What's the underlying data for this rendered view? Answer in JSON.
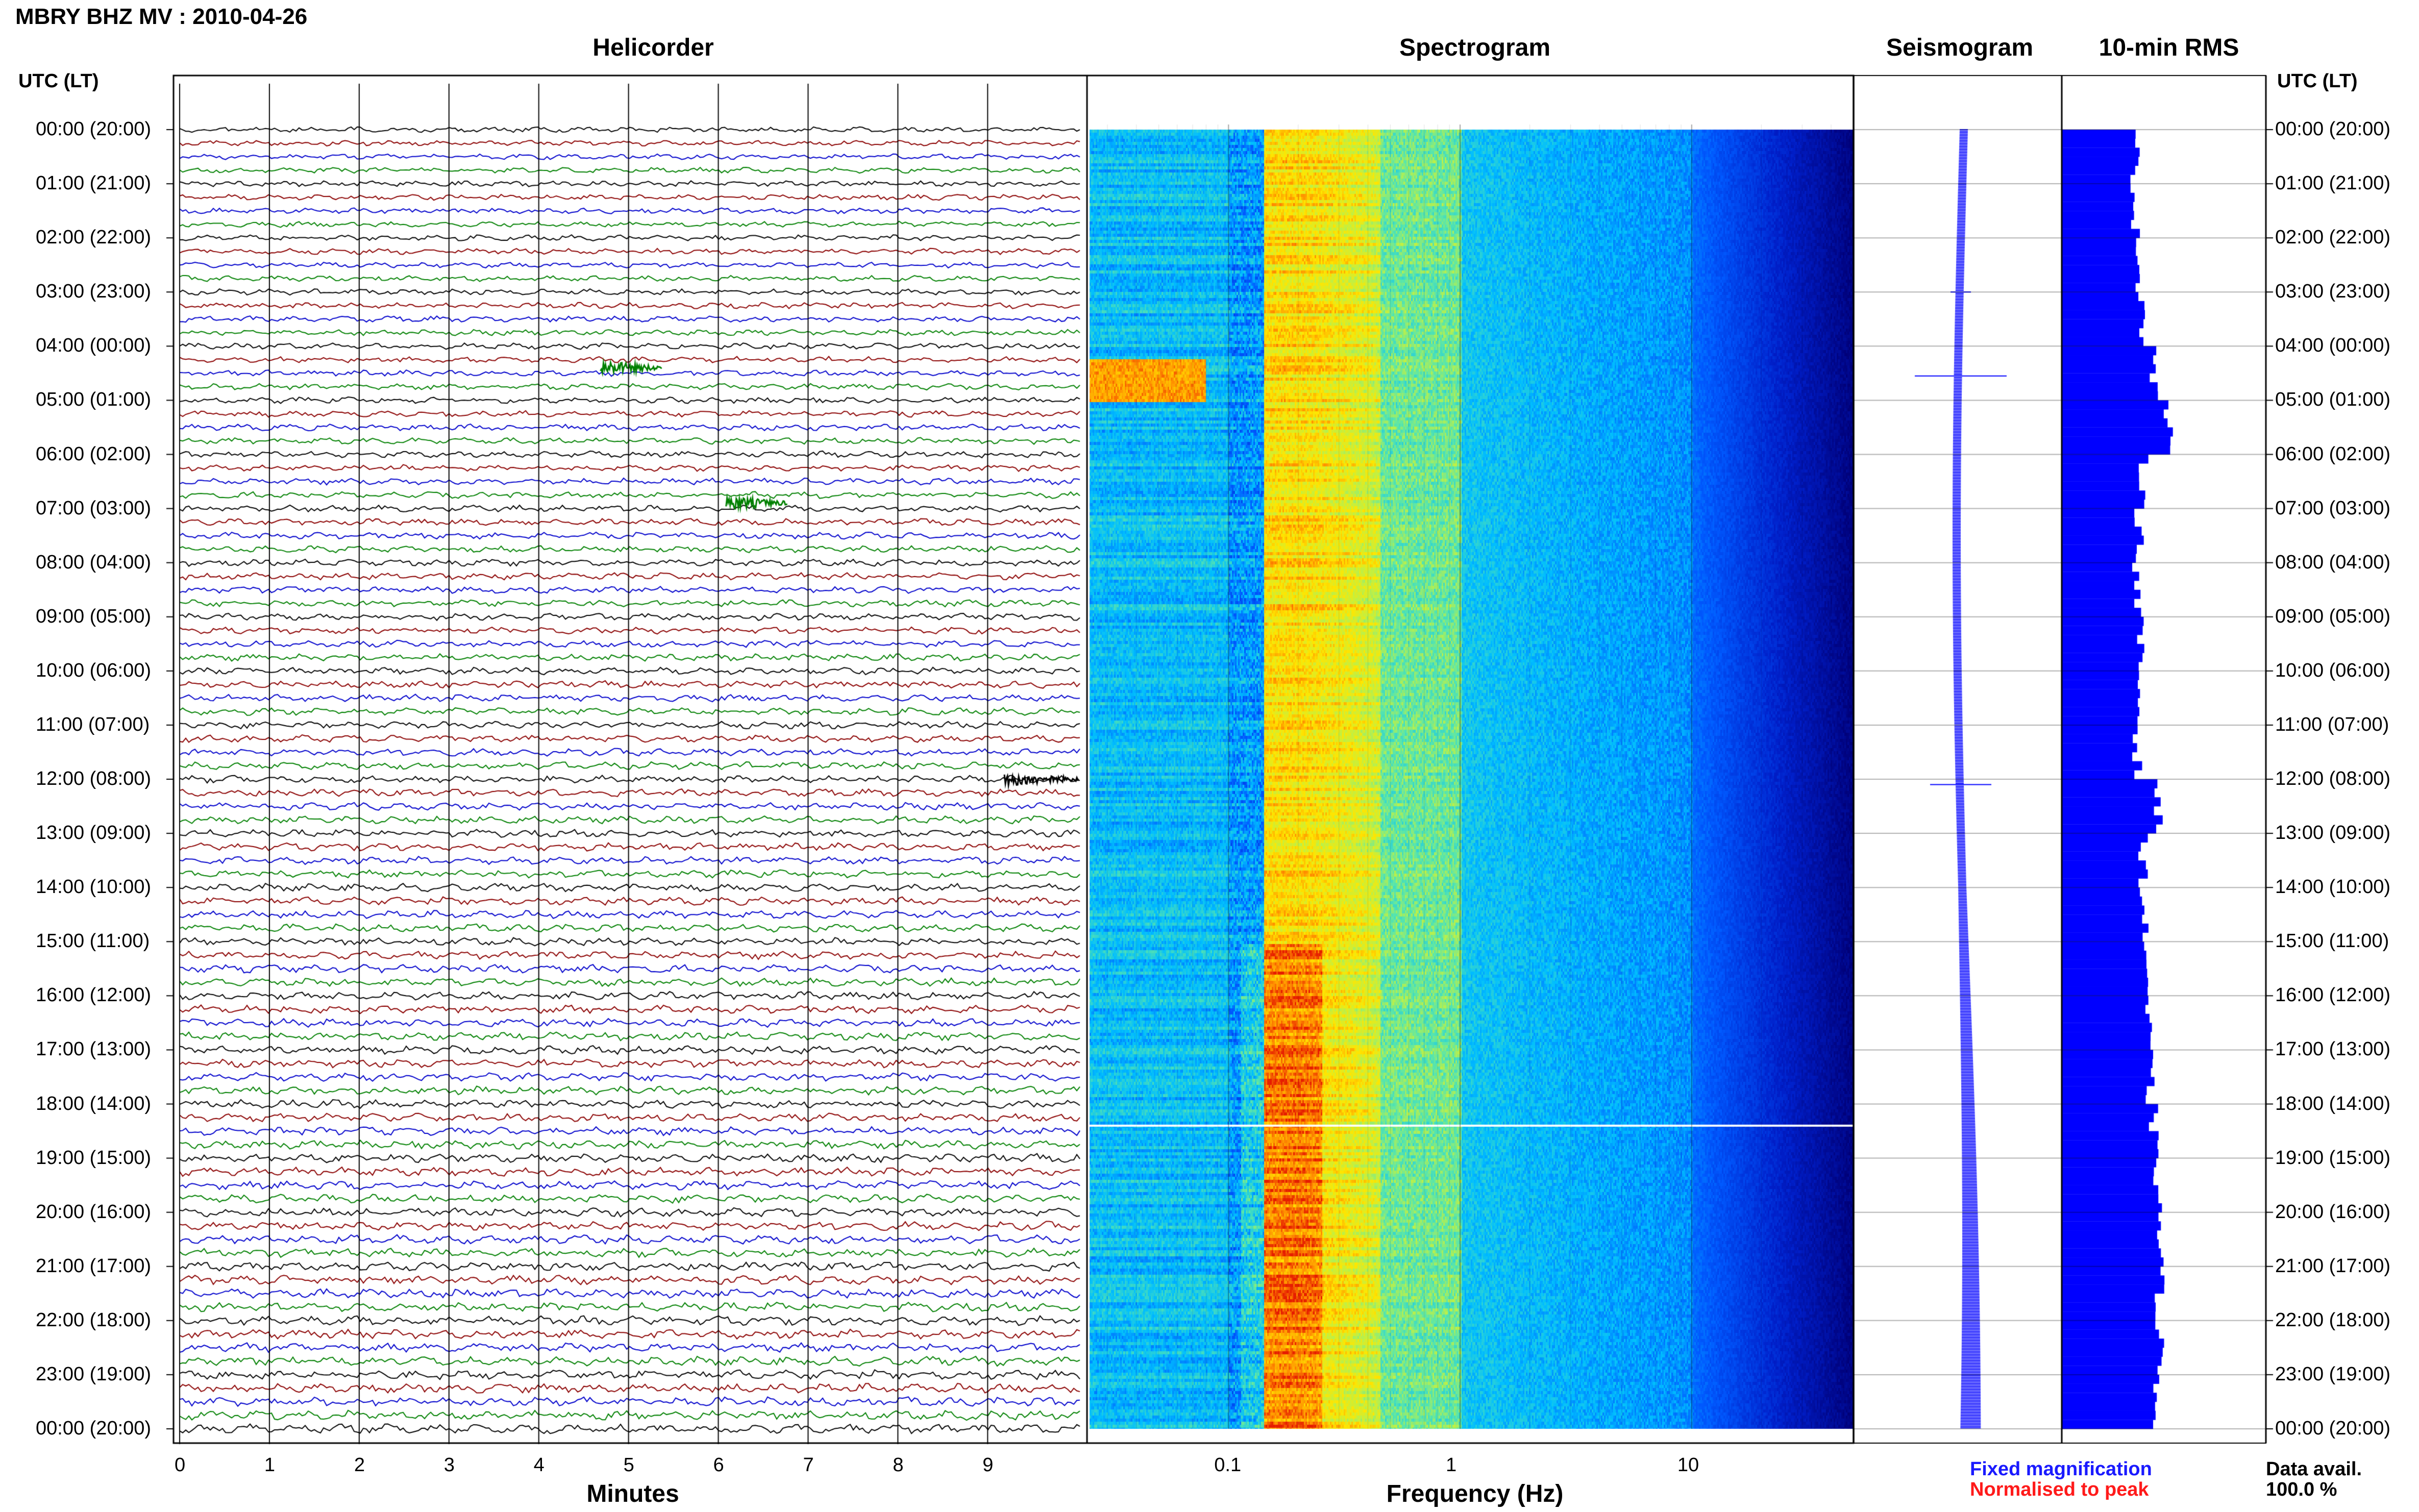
{
  "header": {
    "title": "MBRY BHZ MV : 2010-04-26"
  },
  "panels": {
    "helicorder": "Helicorder",
    "spectrogram": "Spectrogram",
    "seismogram": "Seismogram",
    "rms": "10-min RMS"
  },
  "time_axis": {
    "head_label": "UTC (LT)",
    "labels": [
      "00:00 (20:00)",
      "01:00 (21:00)",
      "02:00 (22:00)",
      "03:00 (23:00)",
      "04:00 (00:00)",
      "05:00 (01:00)",
      "06:00 (02:00)",
      "07:00 (03:00)",
      "08:00 (04:00)",
      "09:00 (05:00)",
      "10:00 (06:00)",
      "11:00 (07:00)",
      "12:00 (08:00)",
      "13:00 (09:00)",
      "14:00 (10:00)",
      "15:00 (11:00)",
      "16:00 (12:00)",
      "17:00 (13:00)",
      "18:00 (14:00)",
      "19:00 (15:00)",
      "20:00 (16:00)",
      "21:00 (17:00)",
      "22:00 (18:00)",
      "23:00 (19:00)",
      "00:00 (20:00)"
    ]
  },
  "x_axes": {
    "minutes_label": "Minutes",
    "minutes_ticks": [
      "0",
      "1",
      "2",
      "3",
      "4",
      "5",
      "6",
      "7",
      "8",
      "9"
    ],
    "frequency_label": "Frequency (Hz)",
    "frequency_ticks": [
      "0.1",
      "1",
      "10"
    ]
  },
  "legend": {
    "fixed": "Fixed magnification",
    "normalised": "Normalised to peak",
    "fixed_color": "#1a1aff",
    "normalised_color": "#ff1a1a"
  },
  "availability": {
    "label": "Data avail.",
    "value": "100.0 %"
  },
  "chart_data": {
    "type": "heatmap",
    "colors": {
      "trace_cycle": [
        "#000000",
        "#8b0000",
        "#0000cc",
        "#008000"
      ],
      "seismogram": "#0000ff",
      "rms": "#0000ff"
    },
    "rms_scale_note": "",
    "rms_hourly_relative": [
      0.36,
      0.36,
      0.38,
      0.4,
      0.45,
      0.52,
      0.4,
      0.38,
      0.37,
      0.38,
      0.38,
      0.37,
      0.47,
      0.4,
      0.4,
      0.42,
      0.42,
      0.43,
      0.45,
      0.47,
      0.48,
      0.48,
      0.48,
      0.47
    ],
    "events": [
      {
        "hour": 4.4,
        "minute": 4.8,
        "color": "#008000"
      },
      {
        "hour": 12.0,
        "minute": 9.3,
        "color": "#000000"
      },
      {
        "hour": 6.9,
        "minute": 6.2,
        "color": "#008000"
      }
    ]
  }
}
